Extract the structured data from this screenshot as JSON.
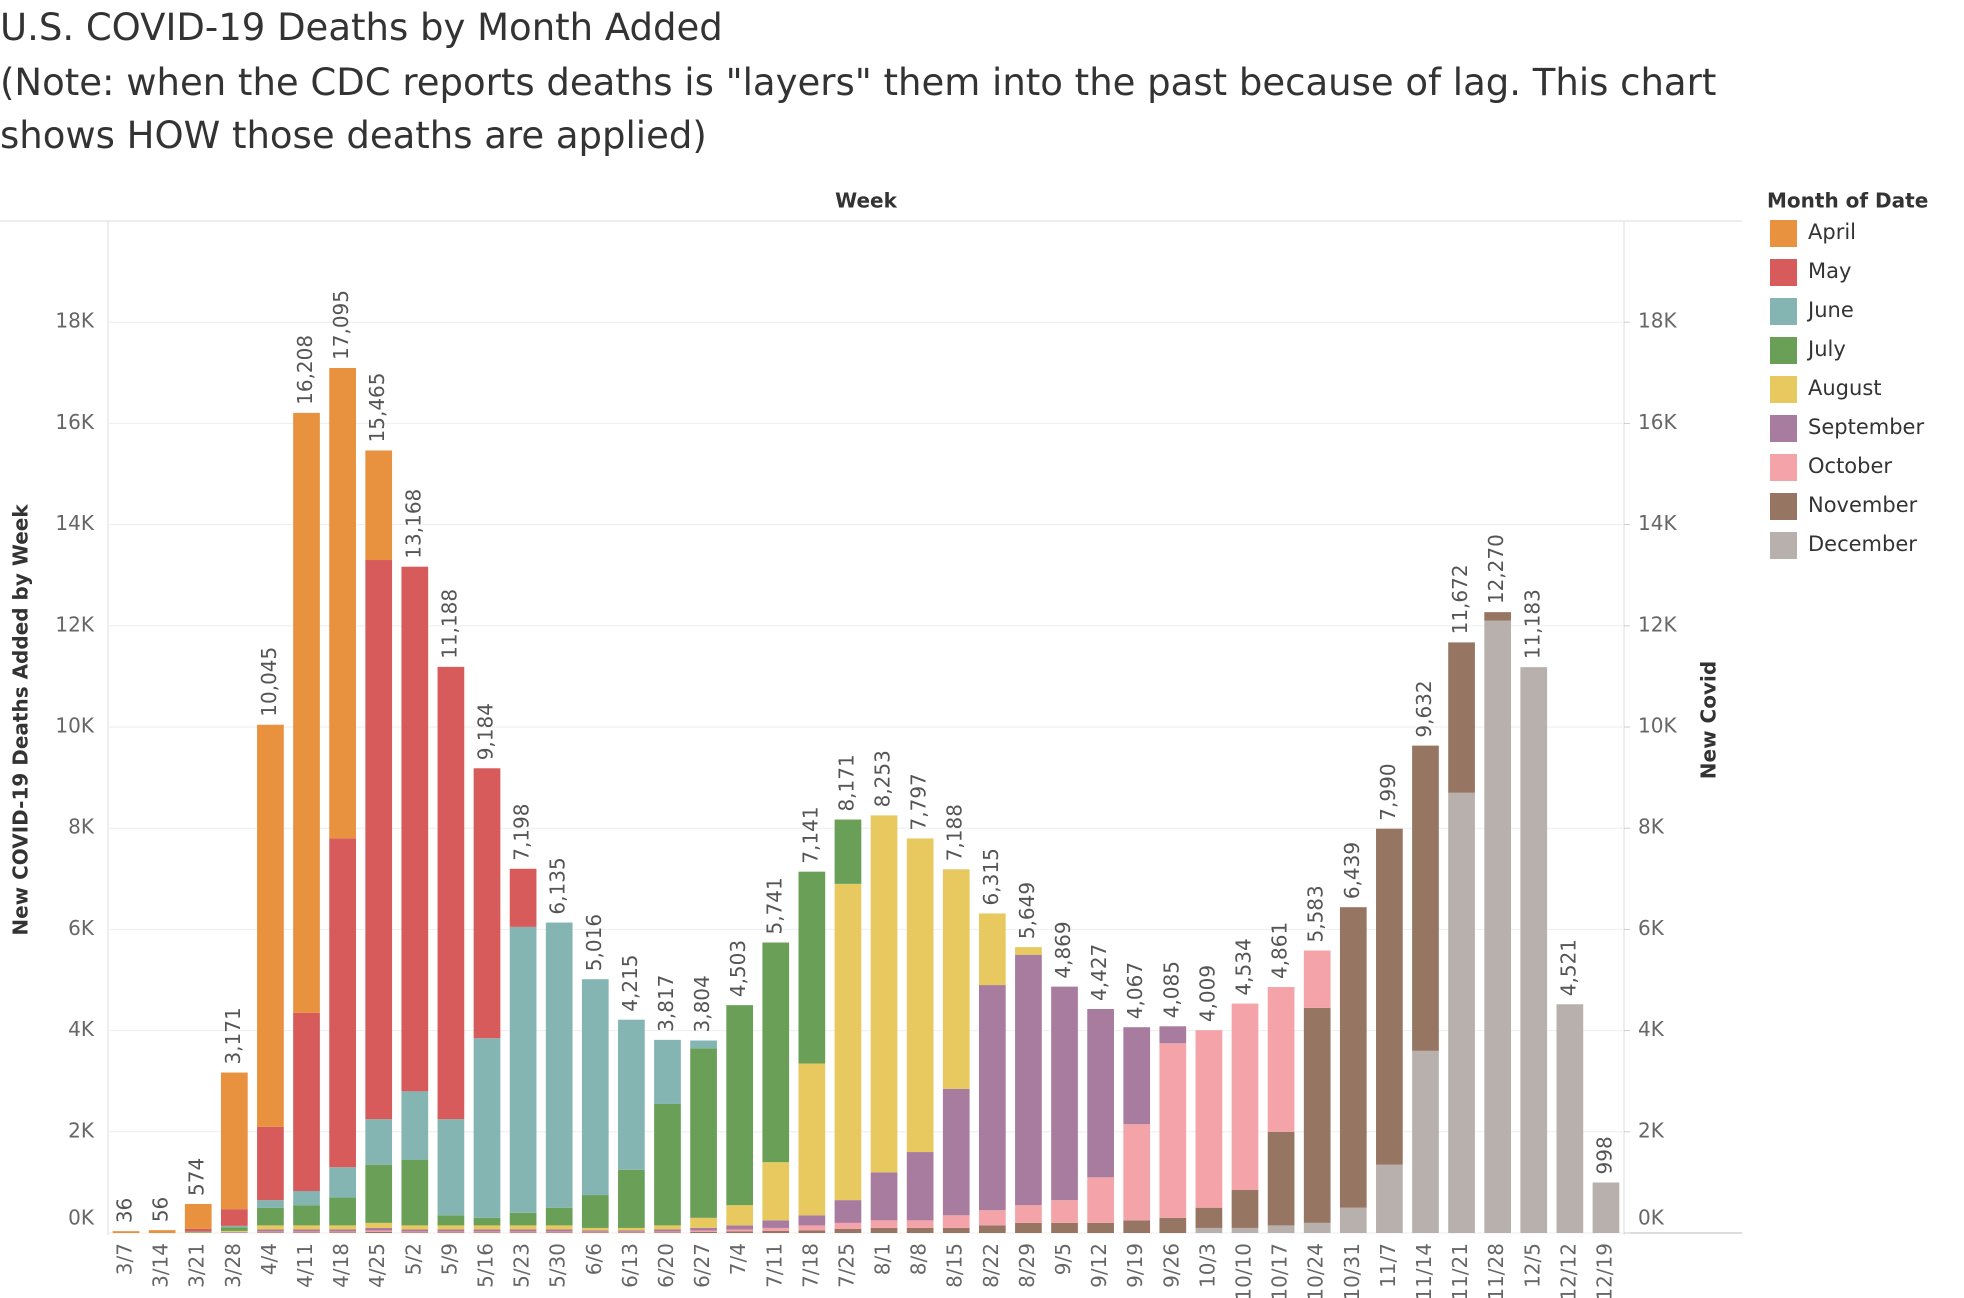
{
  "chart_data": {
    "type": "stacked_bar",
    "title": "U.S. COVID-19 Deaths by Month Added",
    "subtitle": [
      "(Note: when the CDC reports deaths is \"layers\" them into the past because of lag. This chart",
      "shows HOW those deaths are applied)"
    ],
    "header": "Week",
    "ylabel": "New COVID-19 Deaths Added by Week",
    "y2label": "New Covid",
    "legend_title": "Month of Date",
    "categories": [
      "3/7",
      "3/14",
      "3/21",
      "3/28",
      "4/4",
      "4/11",
      "4/18",
      "4/25",
      "5/2",
      "5/9",
      "5/16",
      "5/23",
      "5/30",
      "6/6",
      "6/13",
      "6/20",
      "6/27",
      "7/4",
      "7/11",
      "7/18",
      "7/25",
      "8/1",
      "8/8",
      "8/15",
      "8/22",
      "8/29",
      "9/5",
      "9/12",
      "9/19",
      "9/26",
      "10/3",
      "10/10",
      "10/17",
      "10/24",
      "10/31",
      "11/7",
      "11/14",
      "11/21",
      "11/28",
      "12/5",
      "12/12",
      "12/19"
    ],
    "series": [
      {
        "name": "April",
        "color": "#e8913f",
        "values": [
          36,
          56,
          494,
          2700,
          7945,
          11858,
          9295,
          2165,
          0,
          0,
          0,
          0,
          0,
          0,
          0,
          0,
          0,
          0,
          0,
          0,
          0,
          0,
          0,
          0,
          0,
          0,
          0,
          0,
          0,
          0,
          0,
          0,
          0,
          0,
          0,
          0,
          0,
          0,
          0,
          0,
          0,
          0
        ]
      },
      {
        "name": "May",
        "color": "#d65b5a",
        "values": [
          0,
          0,
          50,
          330,
          1450,
          3520,
          6500,
          11050,
          10368,
          8938,
          5334,
          1148,
          0,
          0,
          0,
          0,
          0,
          0,
          0,
          0,
          0,
          0,
          0,
          0,
          0,
          0,
          0,
          0,
          0,
          0,
          0,
          0,
          0,
          0,
          0,
          0,
          0,
          0,
          0,
          0,
          0,
          0
        ]
      },
      {
        "name": "June",
        "color": "#84b5b2",
        "values": [
          0,
          0,
          10,
          30,
          150,
          280,
          600,
          900,
          1350,
          1900,
          3550,
          5650,
          5635,
          4266,
          2965,
          1267,
          154,
          0,
          0,
          0,
          0,
          0,
          0,
          0,
          0,
          0,
          0,
          0,
          0,
          0,
          0,
          0,
          0,
          0,
          0,
          0,
          0,
          0,
          0,
          0,
          0,
          0
        ]
      },
      {
        "name": "July",
        "color": "#6a9f58",
        "values": [
          0,
          0,
          10,
          70,
          350,
          400,
          550,
          1150,
          1300,
          200,
          150,
          250,
          350,
          650,
          1150,
          2400,
          3350,
          3953,
          4341,
          3791,
          1271,
          0,
          0,
          0,
          0,
          0,
          0,
          0,
          0,
          0,
          0,
          0,
          0,
          0,
          0,
          0,
          0,
          0,
          0,
          0,
          0,
          0
        ]
      },
      {
        "name": "August",
        "color": "#e7c95f",
        "values": [
          0,
          0,
          5,
          20,
          80,
          80,
          80,
          100,
          80,
          80,
          80,
          80,
          80,
          50,
          50,
          80,
          200,
          400,
          1150,
          3000,
          6250,
          7053,
          6197,
          4338,
          1415,
          149,
          0,
          0,
          0,
          0,
          0,
          0,
          0,
          0,
          0,
          0,
          0,
          0,
          0,
          0,
          0,
          0
        ]
      },
      {
        "name": "September",
        "color": "#a77c9f",
        "values": [
          0,
          0,
          3,
          10,
          40,
          40,
          40,
          50,
          40,
          40,
          40,
          40,
          40,
          25,
          25,
          40,
          50,
          80,
          150,
          200,
          450,
          950,
          1350,
          2500,
          4450,
          4950,
          4219,
          3327,
          1917,
          335,
          0,
          0,
          0,
          0,
          0,
          0,
          0,
          0,
          0,
          0,
          0,
          0
        ]
      },
      {
        "name": "October",
        "color": "#f4a3a8",
        "values": [
          0,
          0,
          2,
          6,
          20,
          20,
          20,
          30,
          20,
          20,
          20,
          20,
          20,
          15,
          15,
          20,
          30,
          40,
          60,
          100,
          120,
          150,
          150,
          250,
          300,
          350,
          450,
          900,
          1900,
          3450,
          3509,
          3684,
          2861,
          1133,
          0,
          0,
          0,
          0,
          0,
          0,
          0,
          0
        ]
      },
      {
        "name": "November",
        "color": "#967662",
        "values": [
          0,
          0,
          0,
          5,
          10,
          10,
          10,
          20,
          10,
          10,
          10,
          10,
          10,
          10,
          10,
          10,
          20,
          30,
          40,
          50,
          80,
          100,
          100,
          100,
          150,
          200,
          200,
          200,
          250,
          300,
          400,
          750,
          1850,
          4250,
          5939,
          6640,
          6032,
          2972,
          170,
          0,
          0,
          0
        ]
      },
      {
        "name": "December",
        "color": "#b8b0ac",
        "values": [
          0,
          0,
          0,
          0,
          0,
          0,
          0,
          0,
          0,
          0,
          0,
          0,
          0,
          0,
          0,
          0,
          0,
          0,
          0,
          0,
          0,
          0,
          0,
          0,
          0,
          0,
          0,
          0,
          0,
          0,
          100,
          100,
          150,
          200,
          500,
          1350,
          3600,
          8700,
          12100,
          11183,
          4521,
          998
        ]
      }
    ],
    "stack_order": "last series at bottom",
    "totals": [
      36,
      56,
      574,
      3171,
      10045,
      16208,
      17095,
      15465,
      13168,
      11188,
      9184,
      7198,
      6135,
      5016,
      4215,
      3817,
      3804,
      4503,
      5741,
      7141,
      8171,
      8253,
      7797,
      7188,
      6315,
      5649,
      4869,
      4427,
      4067,
      4085,
      4009,
      4534,
      4861,
      5583,
      6439,
      7990,
      9632,
      11672,
      12270,
      11183,
      4521,
      998
    ],
    "total_labels": [
      "36",
      "56",
      "574",
      "3,171",
      "10,045",
      "16,208",
      "17,095",
      "15,465",
      "13,168",
      "11,188",
      "9,184",
      "7,198",
      "6,135",
      "5,016",
      "4,215",
      "3,817",
      "3,804",
      "4,503",
      "5,741",
      "7,141",
      "8,171",
      "8,253",
      "7,797",
      "7,188",
      "6,315",
      "5,649",
      "4,869",
      "4,427",
      "4,067",
      "4,085",
      "4,009",
      "4,534",
      "4,861",
      "5,583",
      "6,439",
      "7,990",
      "9,632",
      "11,672",
      "12,270",
      "11,183",
      "4,521",
      "998"
    ],
    "ylim": [
      0,
      20000
    ],
    "yticks": [
      {
        "value": 0,
        "label": "0K"
      },
      {
        "value": 2000,
        "label": "2K"
      },
      {
        "value": 4000,
        "label": "4K"
      },
      {
        "value": 6000,
        "label": "6K"
      },
      {
        "value": 8000,
        "label": "8K"
      },
      {
        "value": 10000,
        "label": "10K"
      },
      {
        "value": 12000,
        "label": "12K"
      },
      {
        "value": 14000,
        "label": "14K"
      },
      {
        "value": 16000,
        "label": "16K"
      },
      {
        "value": 18000,
        "label": "18K"
      }
    ],
    "y2lim": [
      0,
      20000
    ],
    "y2ticks": [
      {
        "value": 0,
        "label": "0K"
      },
      {
        "value": 2000,
        "label": "2K"
      },
      {
        "value": 4000,
        "label": "4K"
      },
      {
        "value": 6000,
        "label": "6K"
      },
      {
        "value": 8000,
        "label": "8K"
      },
      {
        "value": 10000,
        "label": "10K"
      },
      {
        "value": 12000,
        "label": "12K"
      },
      {
        "value": 14000,
        "label": "14K"
      },
      {
        "value": 16000,
        "label": "16K"
      },
      {
        "value": 18000,
        "label": "18K"
      }
    ],
    "grid": true,
    "legend": "right"
  }
}
